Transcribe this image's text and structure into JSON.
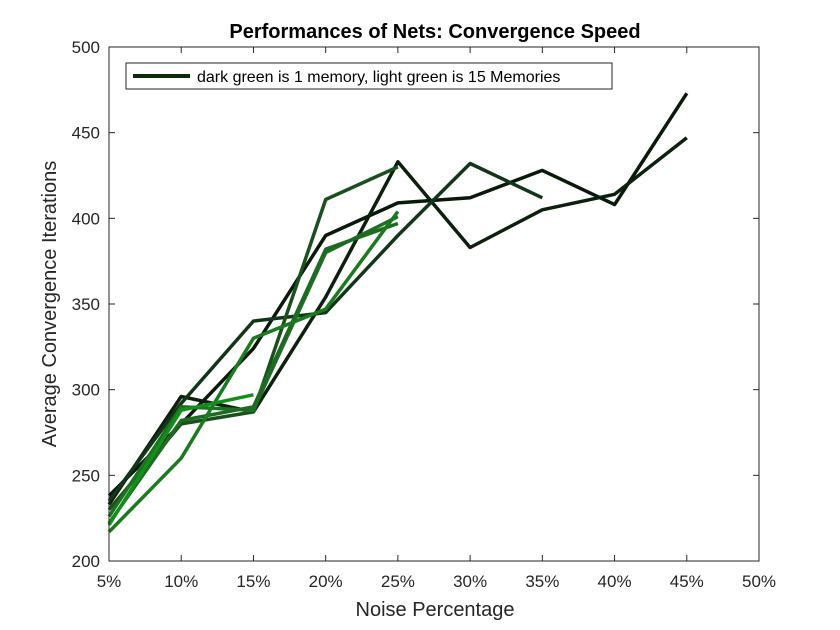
{
  "chart_data": {
    "type": "line",
    "title": "Performances of Nets: Convergence Speed",
    "xlabel": "Noise Percentage",
    "ylabel": "Average Convergence Iterations",
    "x_ticks": [
      "5%",
      "10%",
      "15%",
      "20%",
      "25%",
      "30%",
      "35%",
      "40%",
      "45%",
      "50%"
    ],
    "y_ticks": [
      "200",
      "250",
      "300",
      "350",
      "400",
      "450",
      "500"
    ],
    "xlim": [
      5,
      50
    ],
    "ylim": [
      200,
      500
    ],
    "grid": false,
    "legend_position": "top-left",
    "legend_entry": "dark green is 1 memory, light green is 15 Memories",
    "legend_color": "#0a2a0a",
    "series": [
      {
        "color": "#0a1a0a",
        "x": [
          5,
          10,
          15,
          20,
          25,
          30,
          35,
          40,
          45
        ],
        "y": [
          238,
          280,
          324,
          390,
          409,
          412,
          428,
          408,
          473
        ]
      },
      {
        "color": "#0d200d",
        "x": [
          5,
          10,
          15,
          20,
          25,
          30,
          35,
          40,
          45
        ],
        "y": [
          233,
          296,
          287,
          354,
          433,
          383,
          405,
          414,
          447
        ]
      },
      {
        "color": "#13361a",
        "x": [
          5,
          10,
          15,
          20,
          25,
          30,
          35
        ],
        "y": [
          235,
          292,
          340,
          345,
          390,
          432,
          412
        ]
      },
      {
        "color": "#1a501e",
        "x": [
          5,
          10,
          15,
          20,
          25
        ],
        "y": [
          230,
          280,
          287,
          411,
          430
        ]
      },
      {
        "color": "#207024",
        "x": [
          5,
          10,
          15,
          20,
          25
        ],
        "y": [
          226,
          290,
          288,
          380,
          401
        ]
      },
      {
        "color": "#1e6a22",
        "x": [
          5,
          10,
          15,
          20,
          25
        ],
        "y": [
          222,
          282,
          290,
          382,
          397
        ]
      },
      {
        "color": "#1a7a1e",
        "x": [
          5,
          10,
          15,
          20,
          25
        ],
        "y": [
          217,
          260,
          330,
          347,
          404
        ]
      },
      {
        "color": "#109018",
        "x": [
          5,
          10,
          15
        ],
        "y": [
          221,
          288,
          297
        ]
      }
    ]
  }
}
